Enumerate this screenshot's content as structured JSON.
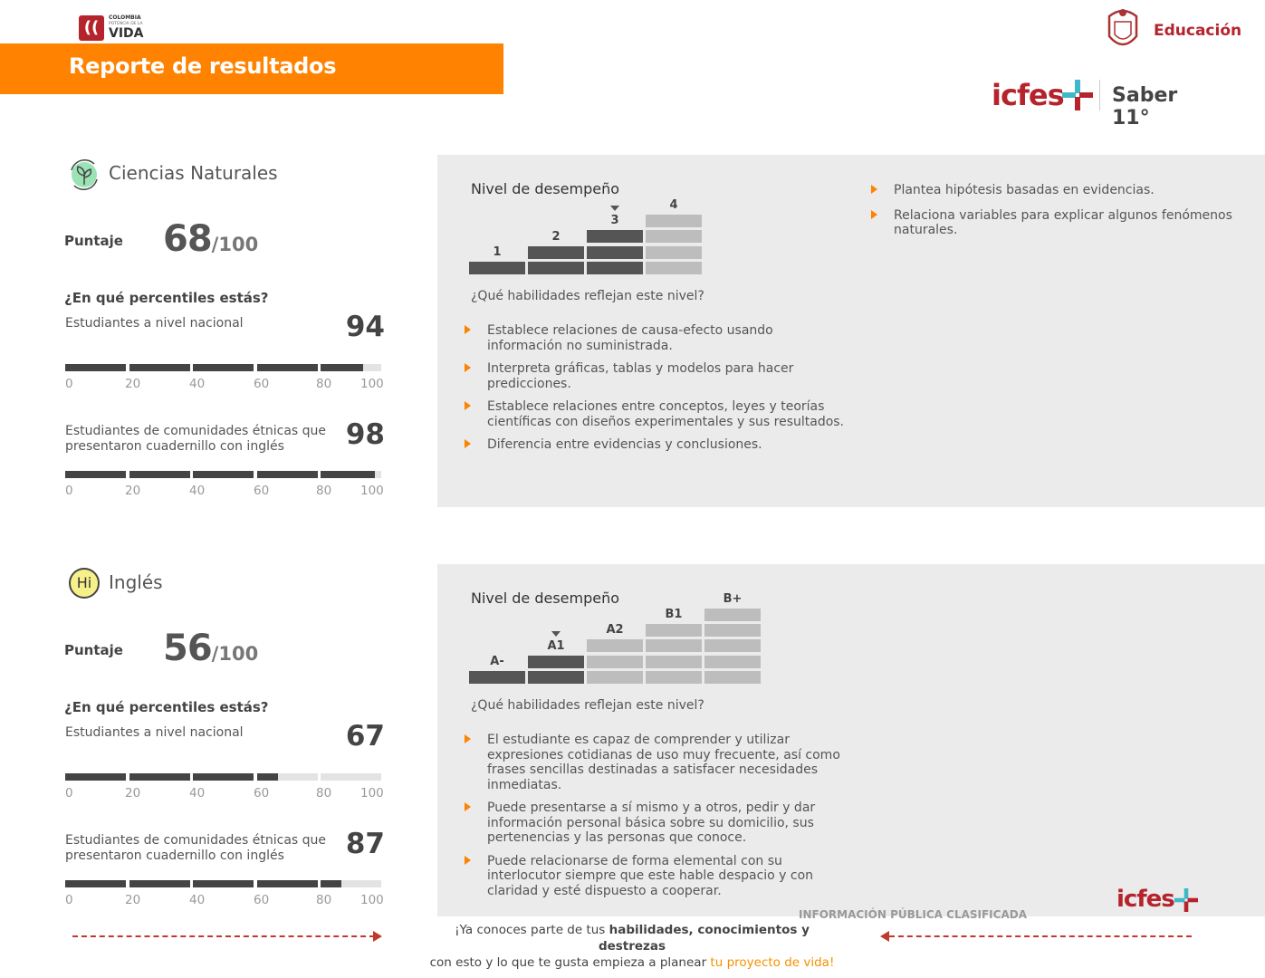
{
  "header": {
    "brand_lines": [
      "COLOMBIA",
      "POTENCIA DE LA",
      "VIDA"
    ],
    "banner_title": "Reporte de resultados",
    "ministry": "Educación",
    "icfes": "icfes",
    "exam": "Saber 11°",
    "colors": {
      "orange": "#ff8200",
      "red": "#b5232d",
      "teal": "#3fb8c8"
    }
  },
  "sections": [
    {
      "subject": "Ciencias Naturales",
      "icon": "plant-cycle-icon",
      "score_label": "Puntaje",
      "score": "68",
      "score_max": "/100",
      "percentile_question": "¿En qué percentiles estás?",
      "percentiles": [
        {
          "label": "Estudiantes a nivel nacional",
          "value": 94
        },
        {
          "label": "Estudiantes de comunidades étnicas que presentaron cuadernillo con inglés",
          "value": 98
        }
      ],
      "ticks": [
        "0",
        "20",
        "40",
        "60",
        "80",
        "100"
      ],
      "level_title": "Nivel de desempeño",
      "levels": [
        "1",
        "2",
        "3",
        "4"
      ],
      "current_level": 3,
      "skills_question": "¿Qué habilidades reflejan este nivel?",
      "skills": [
        "Establece relaciones de causa-efecto usando información no suministrada.",
        "Interpreta gráficas, tablas y modelos para hacer predicciones.",
        "Establece relaciones entre conceptos, leyes y teorías científicas con diseños experimentales y sus resultados.",
        "Diferencia entre evidencias y conclusiones."
      ],
      "extra_skills": [
        "Plantea hipótesis basadas en evidencias.",
        "Relaciona variables para explicar algunos fenómenos naturales."
      ]
    },
    {
      "subject": "Inglés",
      "icon": "hi-speech-bubble-icon",
      "icon_text": "Hi",
      "score_label": "Puntaje",
      "score": "56",
      "score_max": "/100",
      "percentile_question": "¿En qué percentiles estás?",
      "percentiles": [
        {
          "label": "Estudiantes a nivel nacional",
          "value": 67
        },
        {
          "label": "Estudiantes de comunidades étnicas que presentaron cuadernillo con inglés",
          "value": 87
        }
      ],
      "ticks": [
        "0",
        "20",
        "40",
        "60",
        "80",
        "100"
      ],
      "level_title": "Nivel de desempeño",
      "levels": [
        "A-",
        "A1",
        "A2",
        "B1",
        "B+"
      ],
      "current_level": 2,
      "skills_question": "¿Qué habilidades reflejan este nivel?",
      "skills": [
        "El estudiante es capaz de comprender y utilizar expresiones cotidianas de uso muy frecuente, así como frases sencillas destinadas a satisfacer necesidades inmediatas.",
        "Puede presentarse a sí mismo y a otros, pedir y dar información personal básica sobre su domicilio, sus pertenencias y las personas que conoce.",
        "Puede relacionarse de forma elemental con su interlocutor siempre que este hable despacio y con claridad y esté dispuesto a cooperar."
      ],
      "extra_skills": []
    }
  ],
  "footer": {
    "classification": "INFORMACIÓN PÚBLICA CLASIFICADA",
    "line1_a": "¡Ya conoces parte de tus ",
    "line1_b": "habilidades, conocimientos y destrezas",
    "line2_a": "con esto y lo que te gusta empieza a planear ",
    "line2_b": "tu proyecto de vida!",
    "icfes": "icfes"
  }
}
